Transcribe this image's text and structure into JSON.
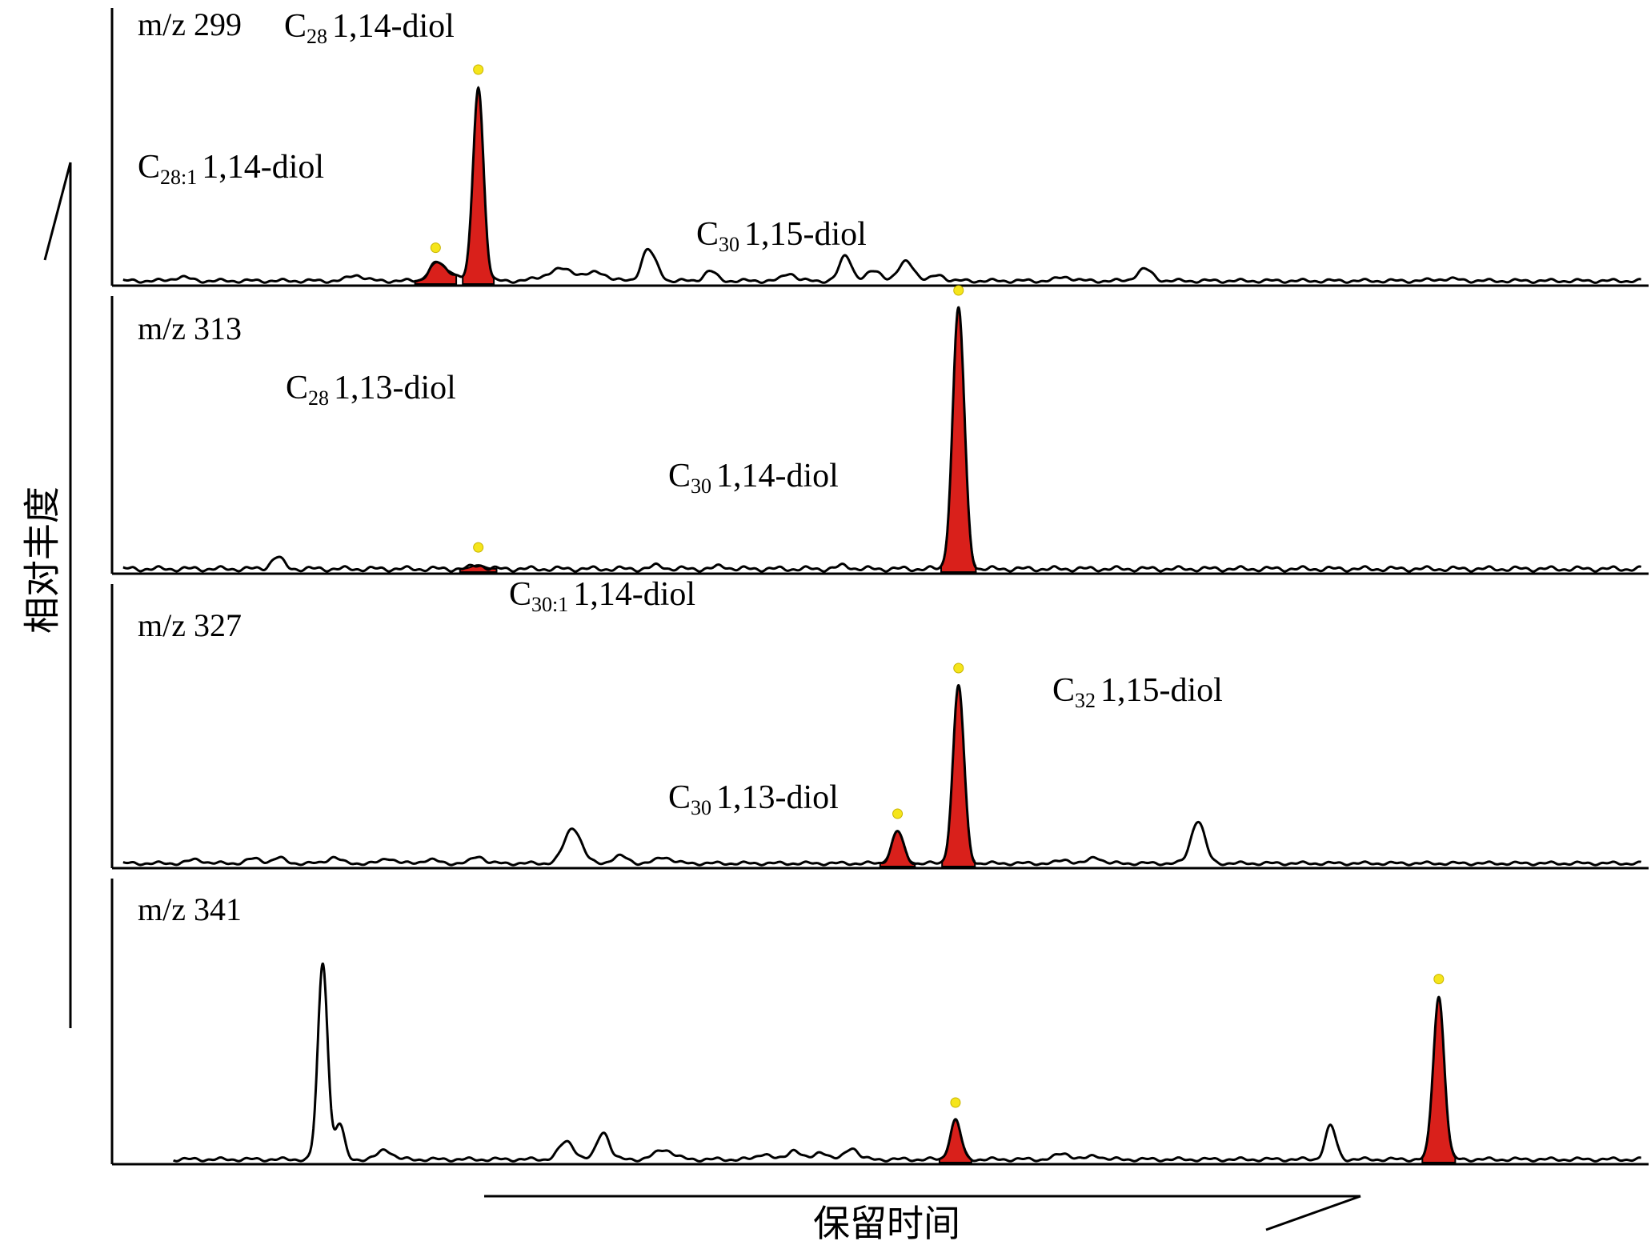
{
  "colors": {
    "trace": "#000000",
    "peak_fill": "#d9201b",
    "marker": "#f5e51b",
    "background": "#ffffff"
  },
  "chart_data": {
    "type": "line",
    "ylabel": "相对丰度",
    "xlabel": "保留时间",
    "x_units": "arbitrary (0-100)",
    "y_units": "relative (0-1)",
    "panels": [
      {
        "label": "m/z 299",
        "noise_peaks": [
          {
            "x": 4,
            "h": 0.02,
            "w": 0.5
          },
          {
            "x": 15.5,
            "h": 0.03,
            "w": 0.5
          },
          {
            "x": 21.6,
            "h": 0.04,
            "w": 0.6
          },
          {
            "x": 29,
            "h": 0.06,
            "w": 1.0
          },
          {
            "x": 31.4,
            "h": 0.04,
            "w": 0.6
          },
          {
            "x": 34.6,
            "h": 0.16,
            "w": 0.4
          },
          {
            "x": 35.3,
            "h": 0.04,
            "w": 0.3
          },
          {
            "x": 38.7,
            "h": 0.05,
            "w": 0.4
          },
          {
            "x": 43.9,
            "h": 0.04,
            "w": 0.4
          },
          {
            "x": 47.6,
            "h": 0.13,
            "w": 0.4
          },
          {
            "x": 49.5,
            "h": 0.05,
            "w": 0.5
          },
          {
            "x": 51.6,
            "h": 0.1,
            "w": 0.5
          },
          {
            "x": 53.7,
            "h": 0.03,
            "w": 0.4
          },
          {
            "x": 62,
            "h": 0.02,
            "w": 0.5
          },
          {
            "x": 67.2,
            "h": 0.06,
            "w": 0.5
          },
          {
            "x": 87,
            "h": 0.01,
            "w": 0.8
          }
        ],
        "labeled_peaks": [
          {
            "name": "C",
            "sub": "28:1",
            "rest": "1,14-diol",
            "x": 20.7,
            "h": 0.08,
            "w": 0.45,
            "label_x": 172,
            "label_y": 222
          },
          {
            "name": "C",
            "sub": "28",
            "rest": "1,14-diol",
            "x": 23.5,
            "h": 1.0,
            "w": 0.34,
            "label_x": 355,
            "label_y": 46
          }
        ]
      },
      {
        "label": "m/z 313",
        "noise_peaks": [
          {
            "x": 10.3,
            "h": 0.045,
            "w": 0.4
          },
          {
            "x": 35.3,
            "h": 0.012,
            "w": 0.4
          },
          {
            "x": 39.5,
            "h": 0.01,
            "w": 0.4
          },
          {
            "x": 47.5,
            "h": 0.012,
            "w": 0.4
          }
        ],
        "labeled_peaks": [
          {
            "name": "C",
            "sub": "28",
            "rest": "1,13-diol",
            "x": 23.5,
            "h": 0.015,
            "w": 0.4,
            "label_x": 357,
            "label_y": 498
          },
          {
            "name": "C",
            "sub": "30",
            "rest": "1,15-diol",
            "x": 55.0,
            "h": 1.0,
            "w": 0.38,
            "label_x": 870,
            "label_y": 306
          }
        ]
      },
      {
        "label": "m/z 327",
        "noise_peaks": [
          {
            "x": 5,
            "h": 0.02,
            "w": 0.5
          },
          {
            "x": 8.8,
            "h": 0.025,
            "w": 0.5
          },
          {
            "x": 10.4,
            "h": 0.03,
            "w": 0.4
          },
          {
            "x": 14,
            "h": 0.035,
            "w": 0.4
          },
          {
            "x": 17.6,
            "h": 0.03,
            "w": 0.4
          },
          {
            "x": 20.3,
            "h": 0.02,
            "w": 0.5
          },
          {
            "x": 23.5,
            "h": 0.04,
            "w": 0.4
          },
          {
            "x": 29.7,
            "h": 0.2,
            "w": 0.55
          },
          {
            "x": 32.8,
            "h": 0.04,
            "w": 0.5
          },
          {
            "x": 35.7,
            "h": 0.035,
            "w": 0.5
          },
          {
            "x": 62,
            "h": 0.02,
            "w": 0.4
          },
          {
            "x": 64,
            "h": 0.035,
            "w": 0.4
          },
          {
            "x": 70.7,
            "h": 0.24,
            "w": 0.45
          }
        ],
        "labeled_peaks": [
          {
            "name": "C",
            "sub": "30:1",
            "rest": "1,14-diol",
            "x": 51.0,
            "h": 0.18,
            "w": 0.38,
            "label_x": 636,
            "label_y": 756
          },
          {
            "name": "C",
            "sub": "30",
            "rest": "1,14-diol",
            "x": 55.0,
            "h": 1.0,
            "w": 0.36,
            "label_x": 835,
            "label_y": 608
          }
        ]
      },
      {
        "label": "m/z 341",
        "noise_peaks": [
          {
            "x": 13.3,
            "h": 1.0,
            "w": 0.32
          },
          {
            "x": 14.4,
            "h": 0.18,
            "w": 0.3
          },
          {
            "x": 17.4,
            "h": 0.05,
            "w": 0.45
          },
          {
            "x": 29.3,
            "h": 0.09,
            "w": 0.5
          },
          {
            "x": 31.7,
            "h": 0.14,
            "w": 0.4
          },
          {
            "x": 35.7,
            "h": 0.05,
            "w": 0.6
          },
          {
            "x": 42.2,
            "h": 0.03,
            "w": 0.4
          },
          {
            "x": 44.2,
            "h": 0.05,
            "w": 0.4
          },
          {
            "x": 46,
            "h": 0.04,
            "w": 0.4
          },
          {
            "x": 48,
            "h": 0.06,
            "w": 0.4
          },
          {
            "x": 61.9,
            "h": 0.03,
            "w": 0.5
          },
          {
            "x": 64,
            "h": 0.02,
            "w": 0.4
          },
          {
            "x": 79.4,
            "h": 0.17,
            "w": 0.35
          }
        ],
        "labeled_peaks": [
          {
            "name": "C",
            "sub": "30",
            "rest": "1,13-diol",
            "x": 54.8,
            "h": 0.2,
            "w": 0.35,
            "label_x": 835,
            "label_y": 1010
          },
          {
            "name": "C",
            "sub": "32",
            "rest": "1,15-diol",
            "x": 86.5,
            "h": 0.83,
            "w": 0.36,
            "label_x": 1315,
            "label_y": 876
          }
        ]
      }
    ]
  }
}
